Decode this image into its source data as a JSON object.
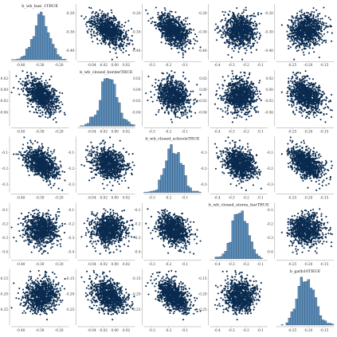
{
  "chart_data": {
    "type": "pairs_matrix",
    "variables": [
      "b_wb_ban_1TRUE",
      "b_wb_closed_borderTRUE",
      "b_wb_closed_schoolsTRUE",
      "b_wb_closed_stores_barTRUE",
      "b_gatb10TRUE"
    ],
    "diagonal": "histogram",
    "off_diagonal": "scatter",
    "colors": {
      "hist_fill": "#5b8db8",
      "hist_stroke": "#1d2f48",
      "points": "#0a2b4f"
    },
    "axes": [
      {
        "range": [
          -0.45,
          -0.15
        ],
        "ticks": [
          -0.4,
          -0.3,
          -0.2
        ],
        "tick_labels": [
          "-0.40",
          "-0.30",
          "-0.20"
        ],
        "center": -0.295,
        "sd": 0.045
      },
      {
        "range": [
          -0.065,
          0.035
        ],
        "ticks": [
          -0.04,
          -0.02,
          0.0,
          0.02
        ],
        "tick_labels": [
          "-0.04",
          "-0.02",
          "0.00",
          "0.02"
        ],
        "center": -0.01,
        "sd": 0.015
      },
      {
        "range": [
          -0.35,
          0.0
        ],
        "ticks": [
          -0.3,
          -0.2,
          -0.1
        ],
        "tick_labels": [
          "-0.3",
          "-0.2",
          "-0.1"
        ],
        "center": -0.17,
        "sd": 0.05
      },
      {
        "range": [
          -0.45,
          -0.05
        ],
        "ticks": [
          -0.4,
          -0.3,
          -0.2,
          -0.1
        ],
        "tick_labels": [
          "-0.4",
          "-0.3",
          "-0.2",
          "-0.1"
        ],
        "center": -0.24,
        "sd": 0.055
      },
      {
        "range": [
          -0.3,
          -0.12
        ],
        "ticks": [
          -0.25,
          -0.2,
          -0.15
        ],
        "tick_labels": [
          "-0.25",
          "-0.20",
          "-0.15"
        ],
        "center": -0.205,
        "sd": 0.025
      }
    ],
    "correlations": [
      [
        1.0,
        -0.5,
        -0.5,
        0.0,
        0.1
      ],
      [
        -0.5,
        1.0,
        -0.2,
        0.0,
        -0.3
      ],
      [
        -0.5,
        -0.2,
        1.0,
        -0.3,
        -0.5
      ],
      [
        0.0,
        0.0,
        -0.3,
        1.0,
        0.0
      ],
      [
        0.1,
        -0.3,
        -0.5,
        0.0,
        1.0
      ]
    ],
    "histogram_bins": 24
  }
}
